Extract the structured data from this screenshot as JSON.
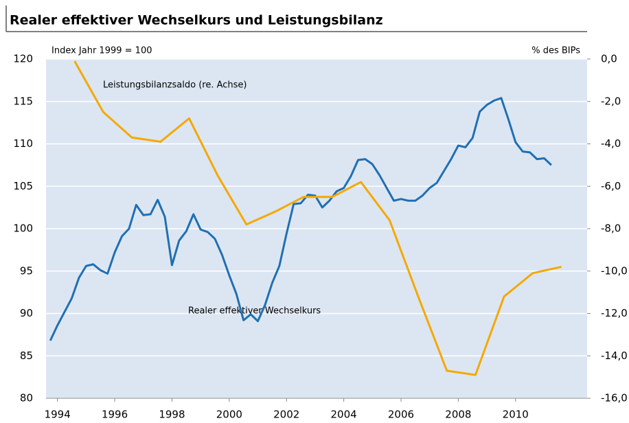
{
  "chart_data": {
    "type": "line",
    "title": "Realer effektiver Wechselkurs und Leistungsbilanz",
    "ylabel": "Index Jahr 1999 = 100",
    "y2label": "% des BIPs",
    "xlim": [
      1993.6,
      2012.5
    ],
    "xticks": [
      1994,
      1996,
      1998,
      2000,
      2002,
      2004,
      2006,
      2008,
      2010
    ],
    "ylim": [
      80,
      120
    ],
    "yticks": [
      80,
      85,
      90,
      95,
      100,
      105,
      110,
      115,
      120
    ],
    "y2lim": [
      -16,
      0
    ],
    "y2ticks": [
      {
        "value": -16,
        "label": "-16,0"
      },
      {
        "value": -14,
        "label": "-14,0"
      },
      {
        "value": -12,
        "label": "-12,0"
      },
      {
        "value": -10,
        "label": "-10,0"
      },
      {
        "value": -8,
        "label": "-8,0"
      },
      {
        "value": -6,
        "label": "-6,0"
      },
      {
        "value": -4,
        "label": "-4,0"
      },
      {
        "value": -2,
        "label": "-2,0"
      },
      {
        "value": 0,
        "label": "0,0"
      }
    ],
    "grid": true,
    "series": [
      {
        "name": "Realer effektiver Wechselkurs",
        "color": "#1f6fb4",
        "axis": "y",
        "x": [
          1993.75,
          1994,
          1994.25,
          1994.5,
          1994.75,
          1995,
          1995.25,
          1995.5,
          1995.75,
          1996,
          1996.25,
          1996.5,
          1996.75,
          1997,
          1997.25,
          1997.5,
          1997.75,
          1998,
          1998.25,
          1998.5,
          1998.75,
          1999,
          1999.25,
          1999.5,
          1999.75,
          2000,
          2000.25,
          2000.5,
          2000.75,
          2001,
          2001.25,
          2001.5,
          2001.75,
          2002,
          2002.25,
          2002.5,
          2002.75,
          2003,
          2003.25,
          2003.5,
          2003.75,
          2004,
          2004.25,
          2004.5,
          2004.75,
          2005,
          2005.25,
          2005.5,
          2005.75,
          2006,
          2006.25,
          2006.5,
          2006.75,
          2007,
          2007.25,
          2007.5,
          2007.75,
          2008,
          2008.25,
          2008.5,
          2008.75,
          2009,
          2009.25,
          2009.5,
          2009.75,
          2010,
          2010.25,
          2010.5,
          2010.75,
          2011,
          2011.25
        ],
        "values": [
          86.8,
          88.6,
          90.2,
          91.8,
          94.2,
          95.6,
          95.8,
          95.1,
          94.7,
          97.2,
          99.1,
          100.0,
          102.8,
          101.6,
          101.7,
          103.4,
          101.4,
          95.7,
          98.6,
          99.7,
          101.7,
          99.9,
          99.6,
          98.8,
          96.9,
          94.5,
          92.3,
          89.2,
          89.9,
          89.1,
          91.0,
          93.6,
          95.6,
          99.4,
          102.9,
          103.0,
          104.0,
          103.9,
          102.5,
          103.3,
          104.4,
          104.8,
          106.2,
          108.1,
          108.2,
          107.6,
          106.3,
          104.8,
          103.3,
          103.5,
          103.3,
          103.3,
          103.9,
          104.8,
          105.4,
          106.8,
          108.2,
          109.8,
          109.6,
          110.7,
          113.8,
          114.6,
          115.1,
          115.4,
          112.9,
          110.2,
          109.1,
          109.0,
          108.2,
          108.3,
          107.5
        ]
      },
      {
        "name": "Leistungsbilanzsaldo (re. Achse)",
        "color": "#f5a800",
        "axis": "y2",
        "x": [
          1994.6,
          1995.6,
          1996.6,
          1997.6,
          1998.6,
          1999.6,
          2000.6,
          2001.6,
          2002.6,
          2003.6,
          2004.6,
          2005.6,
          2006.6,
          2007.6,
          2008.6,
          2009.6,
          2010.6,
          2011.6
        ],
        "values": [
          -0.1,
          -2.5,
          -3.7,
          -3.9,
          -2.8,
          -5.5,
          -7.8,
          -7.2,
          -6.5,
          -6.5,
          -5.8,
          -7.6,
          -11.2,
          -14.7,
          -14.9,
          -11.2,
          -10.1,
          -9.8
        ]
      }
    ]
  }
}
